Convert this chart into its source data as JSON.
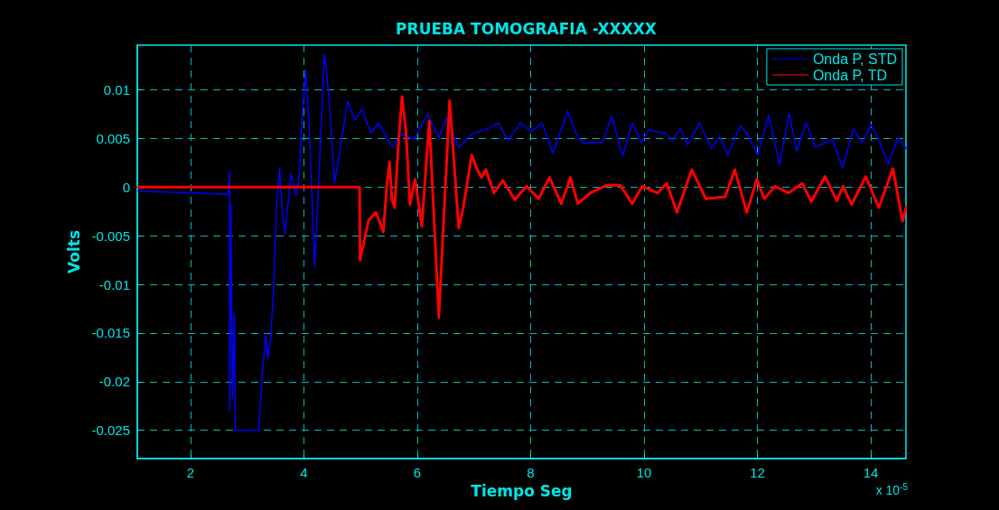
{
  "chart_data": {
    "type": "line",
    "title": "PRUEBA TOMOGRAFIA -XXXXX",
    "xlabel": "Tiempo Seg",
    "ylabel": "Volts",
    "annotations": [
      "x 10$^{-5}$"
    ],
    "xlim": [
      1.06,
      14.62
    ],
    "xticks": [
      2,
      4,
      6,
      8,
      10,
      12,
      14
    ],
    "ylim": [
      -0.0279,
      0.0146
    ],
    "yticks": [
      -0.025,
      -0.02,
      -0.015,
      -0.01,
      -0.005,
      0,
      0.005,
      0.01
    ],
    "grid": true,
    "legend": "top right",
    "marker": "none",
    "line_style": "solid",
    "series": [
      {
        "name": "Onda P, STD",
        "color": "#0000ff",
        "x": [
          1.07,
          2.67,
          2.69,
          2.69,
          2.71,
          2.74,
          2.77,
          2.79,
          3.2,
          3.26,
          3.33,
          3.36,
          3.41,
          3.46,
          3.52,
          3.57,
          3.61,
          3.66,
          3.73,
          3.77,
          3.86,
          3.91,
          3.96,
          4.03,
          4.09,
          4.19,
          4.28,
          4.36,
          4.44,
          4.54,
          4.62,
          4.77,
          4.9,
          5.02,
          5.18,
          5.32,
          5.56,
          5.72,
          5.94,
          6.18,
          6.38,
          6.52,
          6.73,
          6.97,
          7.24,
          7.43,
          7.6,
          7.82,
          8.01,
          8.2,
          8.39,
          8.65,
          8.83,
          8.94,
          9.26,
          9.43,
          9.62,
          9.79,
          9.95,
          10.08,
          10.37,
          10.5,
          10.64,
          10.77,
          10.98,
          11.19,
          11.33,
          11.47,
          11.7,
          11.83,
          12.0,
          12.2,
          12.39,
          12.56,
          12.69,
          12.86,
          13.02,
          13.32,
          13.5,
          13.69,
          13.85,
          14.0,
          14.14,
          14.31,
          14.48,
          14.62
        ],
        "values": [
          -0.0004,
          -0.0007,
          0.0016,
          -0.023,
          -0.0018,
          -0.0217,
          -0.013,
          -0.025,
          -0.025,
          -0.0196,
          -0.0151,
          -0.0176,
          -0.0157,
          -0.0109,
          -0.0015,
          0.0019,
          -0.0018,
          -0.0048,
          -0.0012,
          0.0014,
          -0.0008,
          0.0007,
          0.0063,
          0.0121,
          0.0063,
          -0.0081,
          0.0032,
          0.0137,
          0.0094,
          0.0004,
          0.0032,
          0.0088,
          0.0069,
          0.008,
          0.0056,
          0.0066,
          0.0041,
          0.0055,
          0.0049,
          0.0075,
          0.0051,
          0.0071,
          0.0041,
          0.0055,
          0.006,
          0.0066,
          0.0048,
          0.0066,
          0.0057,
          0.0066,
          0.0035,
          0.0078,
          0.0051,
          0.0045,
          0.0046,
          0.0073,
          0.0032,
          0.0066,
          0.0046,
          0.0059,
          0.0055,
          0.0048,
          0.006,
          0.0043,
          0.0066,
          0.004,
          0.0052,
          0.0033,
          0.0063,
          0.0054,
          0.0033,
          0.0074,
          0.0023,
          0.0076,
          0.0037,
          0.0066,
          0.0041,
          0.0049,
          0.0019,
          0.006,
          0.0046,
          0.0064,
          0.0049,
          0.0024,
          0.0051,
          0.004
        ]
      },
      {
        "name": "Onda P, TD",
        "color": "#ff0000",
        "x": [
          1.07,
          4.98,
          4.99,
          5.14,
          5.27,
          5.4,
          5.46,
          5.51,
          5.55,
          5.6,
          5.67,
          5.73,
          5.8,
          5.87,
          5.96,
          6.08,
          6.21,
          6.38,
          6.57,
          6.73,
          6.81,
          6.96,
          7.05,
          7.13,
          7.21,
          7.35,
          7.51,
          7.72,
          7.93,
          8.14,
          8.33,
          8.54,
          8.7,
          8.83,
          9.05,
          9.34,
          9.58,
          9.79,
          9.97,
          10.24,
          10.4,
          10.58,
          10.84,
          11.09,
          11.43,
          11.6,
          11.81,
          11.99,
          12.12,
          12.31,
          12.55,
          12.79,
          12.95,
          13.19,
          13.4,
          13.51,
          13.66,
          13.91,
          14.14,
          14.39,
          14.56,
          14.62
        ],
        "values": [
          0,
          0,
          -0.0075,
          -0.0034,
          -0.0026,
          -0.0046,
          0,
          0.0026,
          -0.0012,
          -0.0021,
          0.0048,
          0.0093,
          0.0057,
          -0.0018,
          0.0008,
          -0.004,
          0.0068,
          -0.0134,
          0.0089,
          -0.0042,
          -0.0021,
          0.0033,
          0.0019,
          0.001,
          0.0018,
          -0.0006,
          0.0007,
          -0.0013,
          0.0001,
          -0.0012,
          0.001,
          -0.0017,
          0.001,
          -0.0017,
          -0.0006,
          0.0002,
          0.0002,
          -0.0017,
          0.0001,
          -0.0006,
          0.0004,
          -0.0026,
          0.0018,
          -0.0012,
          -0.001,
          0.0018,
          -0.0026,
          0.0008,
          -0.0012,
          0.0001,
          -0.0006,
          0.0004,
          -0.0015,
          0.0011,
          -0.0014,
          0.0001,
          -0.0018,
          0.0011,
          -0.0021,
          0.0019,
          -0.0035,
          -0.0021
        ]
      }
    ]
  }
}
